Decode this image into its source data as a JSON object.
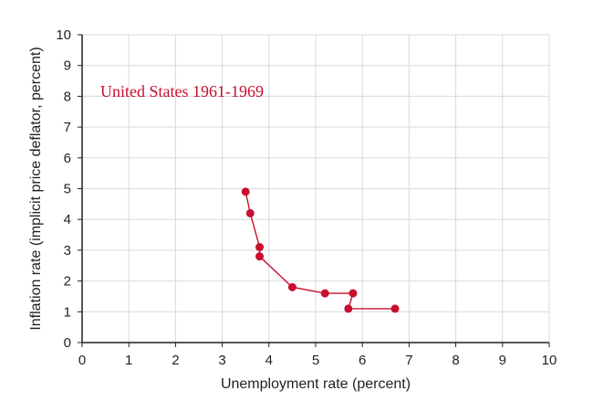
{
  "chart_data": {
    "type": "line",
    "title": "",
    "xlabel": "Unemployment rate (percent)",
    "ylabel": "Inflation rate (implicit price deflator, percent)",
    "xlim": [
      0,
      10
    ],
    "ylim": [
      0,
      10
    ],
    "xticks": [
      "0",
      "1",
      "2",
      "3",
      "4",
      "5",
      "6",
      "7",
      "8",
      "9",
      "10"
    ],
    "yticks": [
      "0",
      "1",
      "2",
      "3",
      "4",
      "5",
      "6",
      "7",
      "8",
      "9",
      "10"
    ],
    "grid": true,
    "annotation": "United States 1961-1969",
    "colors": {
      "series": "#c8102e",
      "grid": "#d9d9d9",
      "axis": "#231f20"
    },
    "series": [
      {
        "points": [
          {
            "x": 6.7,
            "y": 1.1
          },
          {
            "x": 5.7,
            "y": 1.1
          },
          {
            "x": 5.8,
            "y": 1.6
          },
          {
            "x": 5.2,
            "y": 1.6
          },
          {
            "x": 4.5,
            "y": 1.8
          },
          {
            "x": 3.8,
            "y": 2.8
          },
          {
            "x": 3.8,
            "y": 3.1
          },
          {
            "x": 3.6,
            "y": 4.2
          },
          {
            "x": 3.5,
            "y": 4.9
          }
        ]
      }
    ]
  }
}
